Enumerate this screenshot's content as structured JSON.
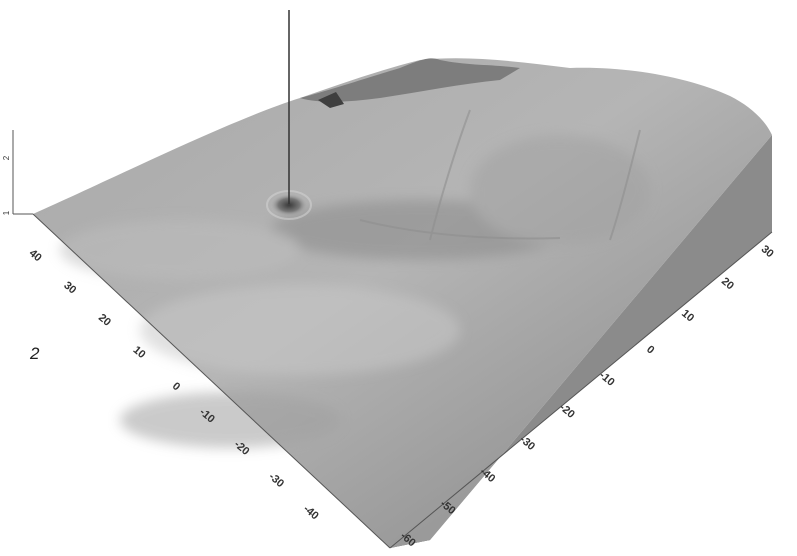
{
  "panel_label": "2",
  "chart_data": {
    "type": "surface",
    "title": "",
    "xlabel": "",
    "ylabel": "",
    "zlabel": "",
    "left_axis": {
      "ticks": [
        "40",
        "30",
        "20",
        "10",
        "0",
        "-10",
        "-20",
        "-30",
        "-40"
      ],
      "range": [
        -40,
        40
      ]
    },
    "right_axis": {
      "ticks": [
        "30",
        "20",
        "10",
        "0",
        "-10",
        "-20",
        "-30",
        "-40",
        "-50",
        "-60"
      ],
      "range": [
        -60,
        30
      ]
    },
    "z_axis": {
      "ticks": [
        "1",
        "2"
      ]
    },
    "features": [
      {
        "kind": "crater-with-marker",
        "left_axis": 30,
        "right_axis": 5
      },
      {
        "kind": "ridge",
        "description": ""
      }
    ],
    "colors": {
      "surface": "#9c9c9c",
      "side_left": "#6e6e6e",
      "side_right": "#8a8a8a",
      "background": "#ffffff"
    }
  }
}
